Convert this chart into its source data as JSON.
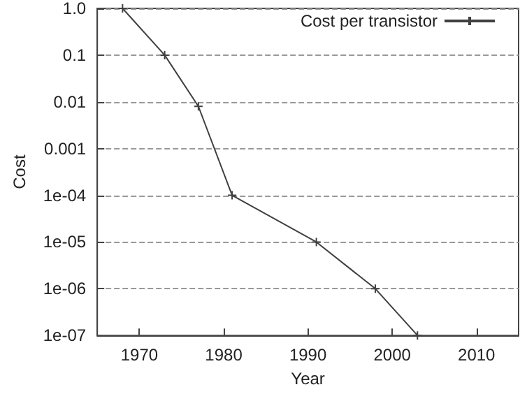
{
  "chart_data": {
    "type": "line",
    "xlabel": "Year",
    "ylabel": "Cost",
    "x": [
      1968,
      1973,
      1977,
      1981,
      1991,
      1998,
      2003
    ],
    "series": [
      {
        "name": "Cost per transistor",
        "color": "#404040",
        "values": [
          1,
          0.1,
          0.008,
          0.0001,
          1e-05,
          1e-06,
          1e-07
        ]
      }
    ],
    "xlim": [
      1965,
      2015
    ],
    "xticks": [
      1970,
      1980,
      1990,
      2000,
      2010
    ],
    "ylim": [
      1e-07,
      1
    ],
    "yticks": [
      {
        "value": 1,
        "label": "1.0"
      },
      0.1,
      0.01,
      0.001,
      {
        "value": 0.0001,
        "label": "1e-04"
      },
      {
        "value": 1e-05,
        "label": "1e-05"
      },
      {
        "value": 1e-06,
        "label": "1e-06"
      },
      {
        "value": 1e-07,
        "label": "1e-07"
      }
    ],
    "log": "y",
    "grid": "y",
    "legend": "top right",
    "marker": "cross",
    "line_style": "solid"
  }
}
